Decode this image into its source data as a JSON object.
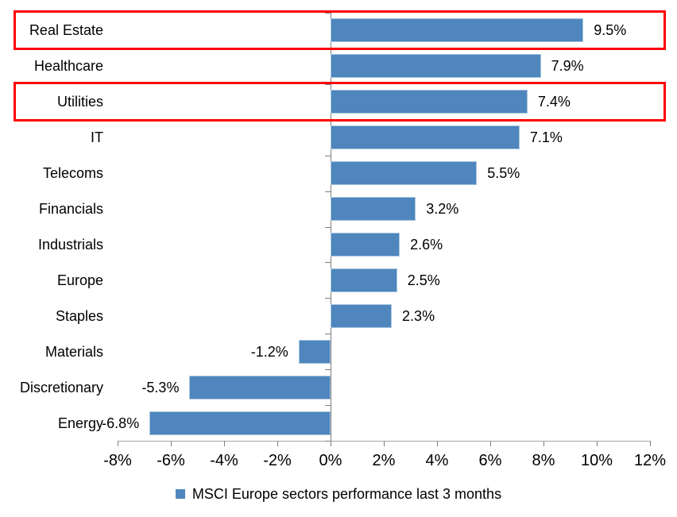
{
  "chart_data": {
    "type": "bar",
    "orientation": "horizontal",
    "legend": "MSCI Europe sectors performance last 3 months",
    "legend_position": "bottom",
    "categories": [
      "Real Estate",
      "Healthcare",
      "Utilities",
      "IT",
      "Telecoms",
      "Financials",
      "Industrials",
      "Europe",
      "Staples",
      "Materials",
      "Discretionary",
      "Energy"
    ],
    "values": [
      9.5,
      7.9,
      7.4,
      7.1,
      5.5,
      3.2,
      2.6,
      2.5,
      2.3,
      -1.2,
      -5.3,
      -6.8
    ],
    "value_labels": [
      "9.5%",
      "7.9%",
      "7.4%",
      "7.1%",
      "5.5%",
      "3.2%",
      "2.6%",
      "2.5%",
      "2.3%",
      "-1.2%",
      "-5.3%",
      "-6.8%"
    ],
    "x_ticks": [
      "-8%",
      "-6%",
      "-4%",
      "-2%",
      "0%",
      "2%",
      "4%",
      "6%",
      "8%",
      "10%",
      "12%"
    ],
    "xlim": [
      -8,
      12
    ],
    "grid": false,
    "bar_color": "#4e86bd",
    "bar_border_color": "#a8c4dd",
    "highlight_color": "#ff0000",
    "highlighted_categories": [
      "Real Estate",
      "Utilities"
    ]
  }
}
